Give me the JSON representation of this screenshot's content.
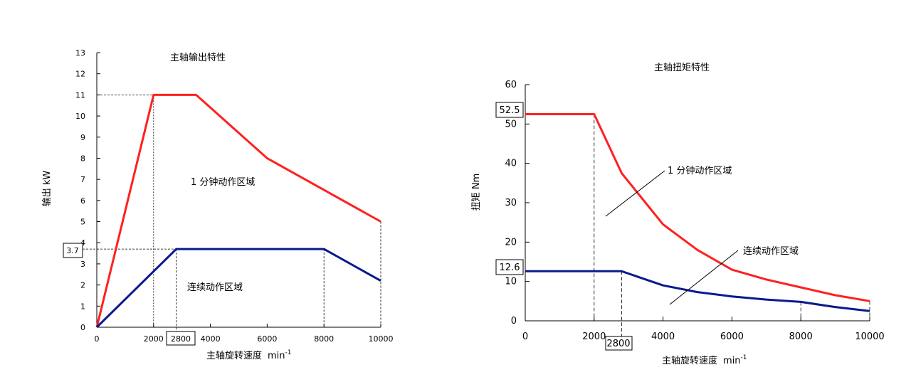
{
  "chart_data": [
    {
      "type": "line",
      "title": "主轴输出特性",
      "xlabel": "主轴旋转速度",
      "xunit_base": "min",
      "xunit_exp": "-1",
      "ylabel": "输出 kW",
      "xlim": [
        0,
        10000
      ],
      "ylim": [
        0,
        13
      ],
      "x_ticks": [
        0,
        2000,
        4000,
        6000,
        8000,
        10000
      ],
      "x_tick_labels": [
        "0",
        "2000",
        "4000",
        "6000",
        "8000",
        "10000"
      ],
      "y_ticks": [
        0,
        1,
        2,
        3,
        4,
        5,
        6,
        7,
        8,
        9,
        10,
        11,
        12,
        13
      ],
      "y_tick_labels": [
        "0",
        "1",
        "2",
        "3",
        "4",
        "5",
        "6",
        "7",
        "8",
        "9",
        "10",
        "11",
        "12",
        "13"
      ],
      "boxed_x_label": "2800",
      "boxed_x_value": 2800,
      "boxed_y_label": "3.7",
      "boxed_y_value": 3.7,
      "annotations": [
        "1 分钟动作区域",
        "连续动作区域"
      ],
      "series": [
        {
          "color": "#ff2020",
          "x": [
            0,
            2000,
            3500,
            6000,
            10000
          ],
          "y": [
            0,
            11,
            11,
            8,
            5
          ]
        },
        {
          "color": "#0a1a8c",
          "x": [
            0,
            2800,
            8000,
            10000
          ],
          "y": [
            0,
            3.7,
            3.7,
            2.2
          ]
        }
      ]
    },
    {
      "type": "line",
      "title": "主轴扭矩特性",
      "xlabel": "主轴旋转速度",
      "xunit_base": "min",
      "xunit_exp": "-1",
      "ylabel": "扭矩 Nm",
      "xlim": [
        0,
        10000
      ],
      "ylim": [
        0,
        60
      ],
      "x_ticks": [
        0,
        2000,
        4000,
        6000,
        8000,
        10000
      ],
      "x_tick_labels": [
        "0",
        "2000",
        "4000",
        "6000",
        "8000",
        "10000"
      ],
      "y_ticks": [
        0,
        10,
        20,
        30,
        40,
        50,
        60
      ],
      "y_tick_labels": [
        "0",
        "10",
        "20",
        "30",
        "40",
        "50",
        "60"
      ],
      "boxed_x_label": "2800",
      "boxed_x_value": 2800,
      "boxed_y_labels": [
        "52.5",
        "12.6"
      ],
      "boxed_y_values": [
        52.5,
        12.6
      ],
      "annotations": [
        "1 分钟动作区域",
        "连续动作区域"
      ],
      "series": [
        {
          "color": "#ff2020",
          "x": [
            0,
            2000,
            2800,
            4000,
            5000,
            6000,
            7000,
            8000,
            9000,
            10000
          ],
          "y": [
            52.5,
            52.5,
            37.5,
            24.5,
            18,
            13,
            10.5,
            8.5,
            6.5,
            5
          ]
        },
        {
          "color": "#0a1a8c",
          "x": [
            0,
            2800,
            3500,
            4000,
            5000,
            6000,
            7000,
            8000,
            9000,
            10000
          ],
          "y": [
            12.6,
            12.6,
            10.5,
            9,
            7.3,
            6.2,
            5.4,
            4.8,
            3.5,
            2.5
          ]
        }
      ]
    }
  ]
}
